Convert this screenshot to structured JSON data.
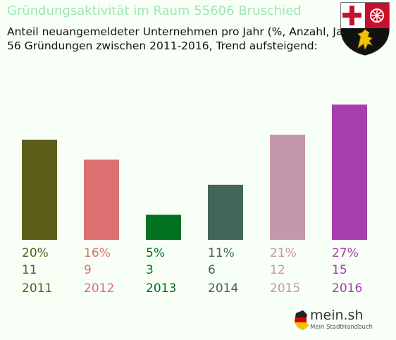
{
  "header": {
    "title": "Gründungsaktivität im Raum 55606 Bruschied",
    "subtitle_line1": "Anteil neuangemeldeter Unternehmen pro Jahr (%, Anzahl, Jahr)",
    "subtitle_line2": "56 Gründungen zwischen 2011-2016, Trend aufsteigend:"
  },
  "crest": {
    "icon": "rhineland-palatinate-coat-of-arms-icon"
  },
  "logo": {
    "name": "mein.sh",
    "tagline": "Mein StadtHandbuch",
    "icon": "germany-flag-map-icon"
  },
  "chart_data": {
    "type": "bar",
    "categories": [
      "2011",
      "2012",
      "2013",
      "2014",
      "2015",
      "2016"
    ],
    "values": [
      20,
      16,
      5,
      11,
      21,
      27
    ],
    "percent_labels": [
      "20%",
      "16%",
      "5%",
      "11%",
      "21%",
      "27%"
    ],
    "counts": [
      11,
      9,
      3,
      6,
      12,
      15
    ],
    "colors": [
      "#5c5e1a",
      "#dc7070",
      "#03721f",
      "#43665a",
      "#c597aa",
      "#a63fab"
    ],
    "grid": false,
    "legend": "none"
  }
}
